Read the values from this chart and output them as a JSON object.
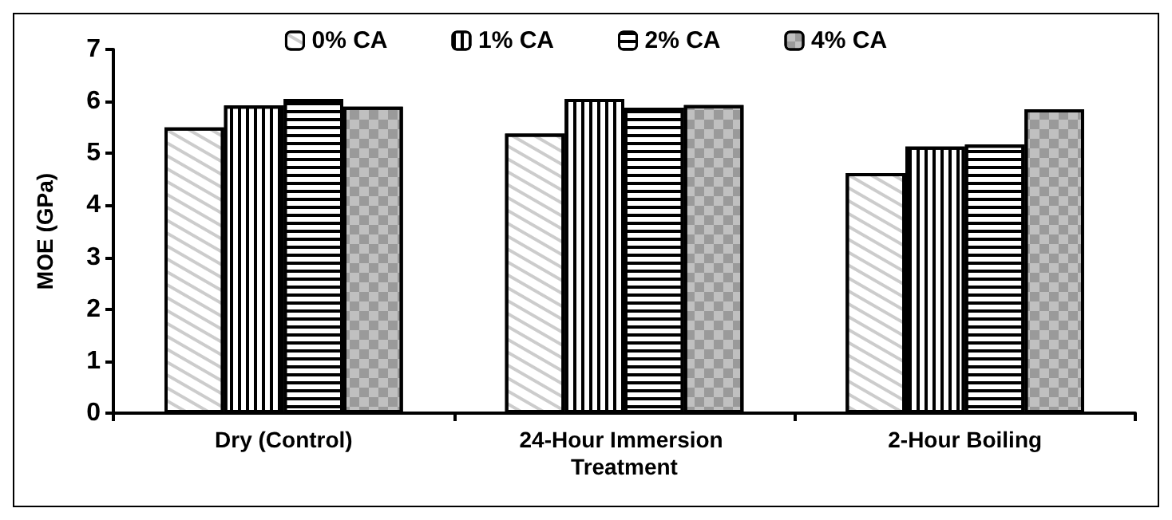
{
  "chart_data": {
    "type": "bar",
    "ylabel": "MOE (GPa)",
    "categories": [
      "Dry (Control)",
      "24-Hour Immersion Treatment",
      "2-Hour Boiling"
    ],
    "series": [
      {
        "name": "0% CA",
        "color": "#ffffff",
        "values": [
          5.5,
          5.38,
          4.62
        ]
      },
      {
        "name": "1% CA",
        "color": "#ffffff",
        "values": [
          5.92,
          6.05,
          5.13
        ]
      },
      {
        "name": "2% CA",
        "color": "#ffffff",
        "values": [
          6.05,
          5.88,
          5.17
        ]
      },
      {
        "name": "4% CA",
        "color": "#c0c0c0",
        "values": [
          5.9,
          5.93,
          5.85
        ]
      }
    ],
    "ylim": [
      0,
      7
    ],
    "yticks": [
      0,
      1,
      2,
      3,
      4,
      5,
      6,
      7
    ],
    "grid": false,
    "legend": "top"
  }
}
